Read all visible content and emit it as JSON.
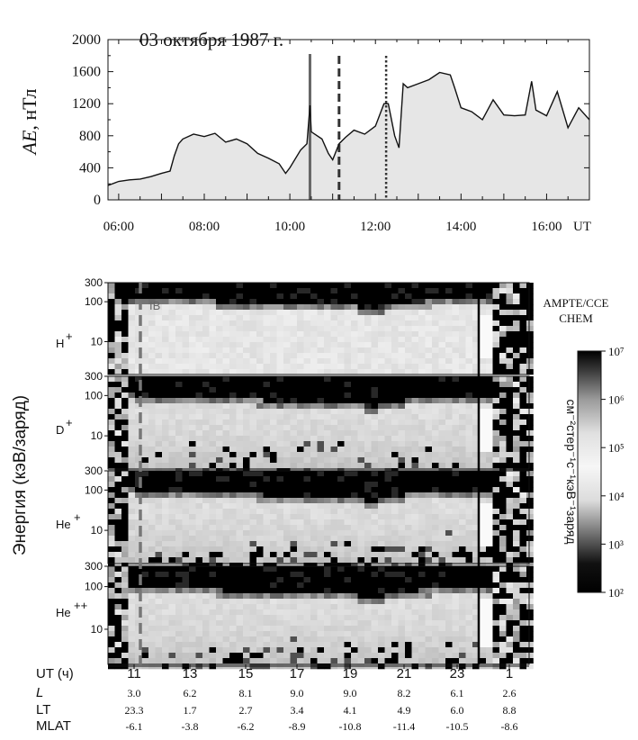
{
  "chart_data": [
    {
      "type": "area",
      "title": "03 октября 1987 г.",
      "ylabel_symbol": "AE",
      "ylabel_unit": ", нТл",
      "x_unit": "UT",
      "xlim_hours": [
        5.75,
        17.0
      ],
      "ylim": [
        0,
        2000
      ],
      "y_ticks": [
        0,
        400,
        800,
        1200,
        1600,
        2000
      ],
      "x_tick_labels": [
        "06:00",
        "08:00",
        "10:00",
        "12:00",
        "14:00",
        "16:00"
      ],
      "x_tick_hours": [
        6,
        8,
        10,
        12,
        14,
        16
      ],
      "fill_color": "#e6e6e6",
      "line_color": "#111111",
      "markers": [
        {
          "hour": 10.47,
          "style": "solid"
        },
        {
          "hour": 11.15,
          "style": "dashed"
        },
        {
          "hour": 12.25,
          "style": "dotted"
        }
      ],
      "x": [
        5.75,
        6.0,
        6.25,
        6.5,
        6.75,
        7.0,
        7.2,
        7.3,
        7.4,
        7.5,
        7.75,
        8.0,
        8.25,
        8.5,
        8.75,
        9.0,
        9.25,
        9.5,
        9.75,
        9.9,
        10.0,
        10.25,
        10.4,
        10.47,
        10.5,
        10.75,
        10.9,
        11.0,
        11.15,
        11.3,
        11.5,
        11.75,
        12.0,
        12.2,
        12.3,
        12.45,
        12.55,
        12.65,
        12.75,
        13.0,
        13.25,
        13.5,
        13.75,
        13.85,
        14.0,
        14.25,
        14.5,
        14.75,
        15.0,
        15.25,
        15.5,
        15.65,
        15.75,
        16.0,
        16.25,
        16.5,
        16.75,
        17.0
      ],
      "y": [
        180,
        230,
        250,
        260,
        290,
        330,
        360,
        550,
        700,
        760,
        820,
        790,
        830,
        720,
        760,
        700,
        580,
        520,
        450,
        330,
        400,
        620,
        700,
        1180,
        850,
        760,
        580,
        500,
        700,
        780,
        870,
        820,
        920,
        1200,
        1200,
        800,
        650,
        1450,
        1400,
        1450,
        1500,
        1590,
        1560,
        1400,
        1150,
        1100,
        1000,
        1250,
        1060,
        1050,
        1060,
        1480,
        1120,
        1050,
        1350,
        900,
        1150,
        1000
      ]
    },
    {
      "type": "heatmap",
      "instrument": [
        "AMPTE/CCE",
        "CHEM"
      ],
      "ylabel": "Энергия (кэВ/заряд)",
      "y_ticks": [
        10,
        100,
        300
      ],
      "panels": [
        "H",
        "D",
        "He",
        "He"
      ],
      "panel_charges": [
        "+",
        "+",
        "+",
        "++"
      ],
      "boundary_label": "IB",
      "boundary_ut": 11.4,
      "colorbar": {
        "label": "см⁻²стер⁻¹с⁻¹кэВ⁻¹заряд",
        "range": [
          100,
          10000000
        ],
        "tick_exponents": [
          "10²",
          "10³",
          "10⁴",
          "10⁵",
          "10⁶",
          "10⁷"
        ]
      },
      "table": {
        "row_labels": [
          "UT (ч)",
          "L",
          "LT",
          "MLAT"
        ],
        "columns": [
          {
            "UT": "11",
            "L": "3.0",
            "LT": "23.3",
            "MLAT": "-6.1"
          },
          {
            "UT": "13",
            "L": "6.2",
            "LT": "1.7",
            "MLAT": "-3.8"
          },
          {
            "UT": "15",
            "L": "8.1",
            "LT": "2.7",
            "MLAT": "-6.2"
          },
          {
            "UT": "17",
            "L": "9.0",
            "LT": "3.4",
            "MLAT": "-8.9"
          },
          {
            "UT": "19",
            "L": "9.0",
            "LT": "4.1",
            "MLAT": "-10.8"
          },
          {
            "UT": "21",
            "L": "8.2",
            "LT": "4.9",
            "MLAT": "-11.4"
          },
          {
            "UT": "23",
            "L": "6.1",
            "LT": "6.0",
            "MLAT": "-10.5"
          },
          {
            "UT": "1",
            "L": "2.6",
            "LT": "8.8",
            "MLAT": "-8.6"
          }
        ]
      }
    }
  ]
}
